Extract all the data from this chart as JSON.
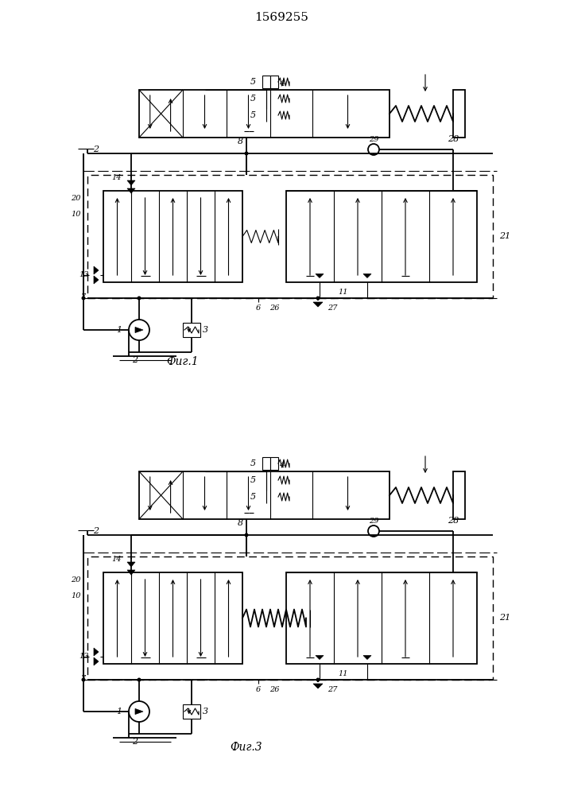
{
  "title": "1569255",
  "fig1_label": "Фиг.1",
  "fig3_label": "Фиг.3",
  "lw": 1.3,
  "tlw": 0.8,
  "lc": "black"
}
